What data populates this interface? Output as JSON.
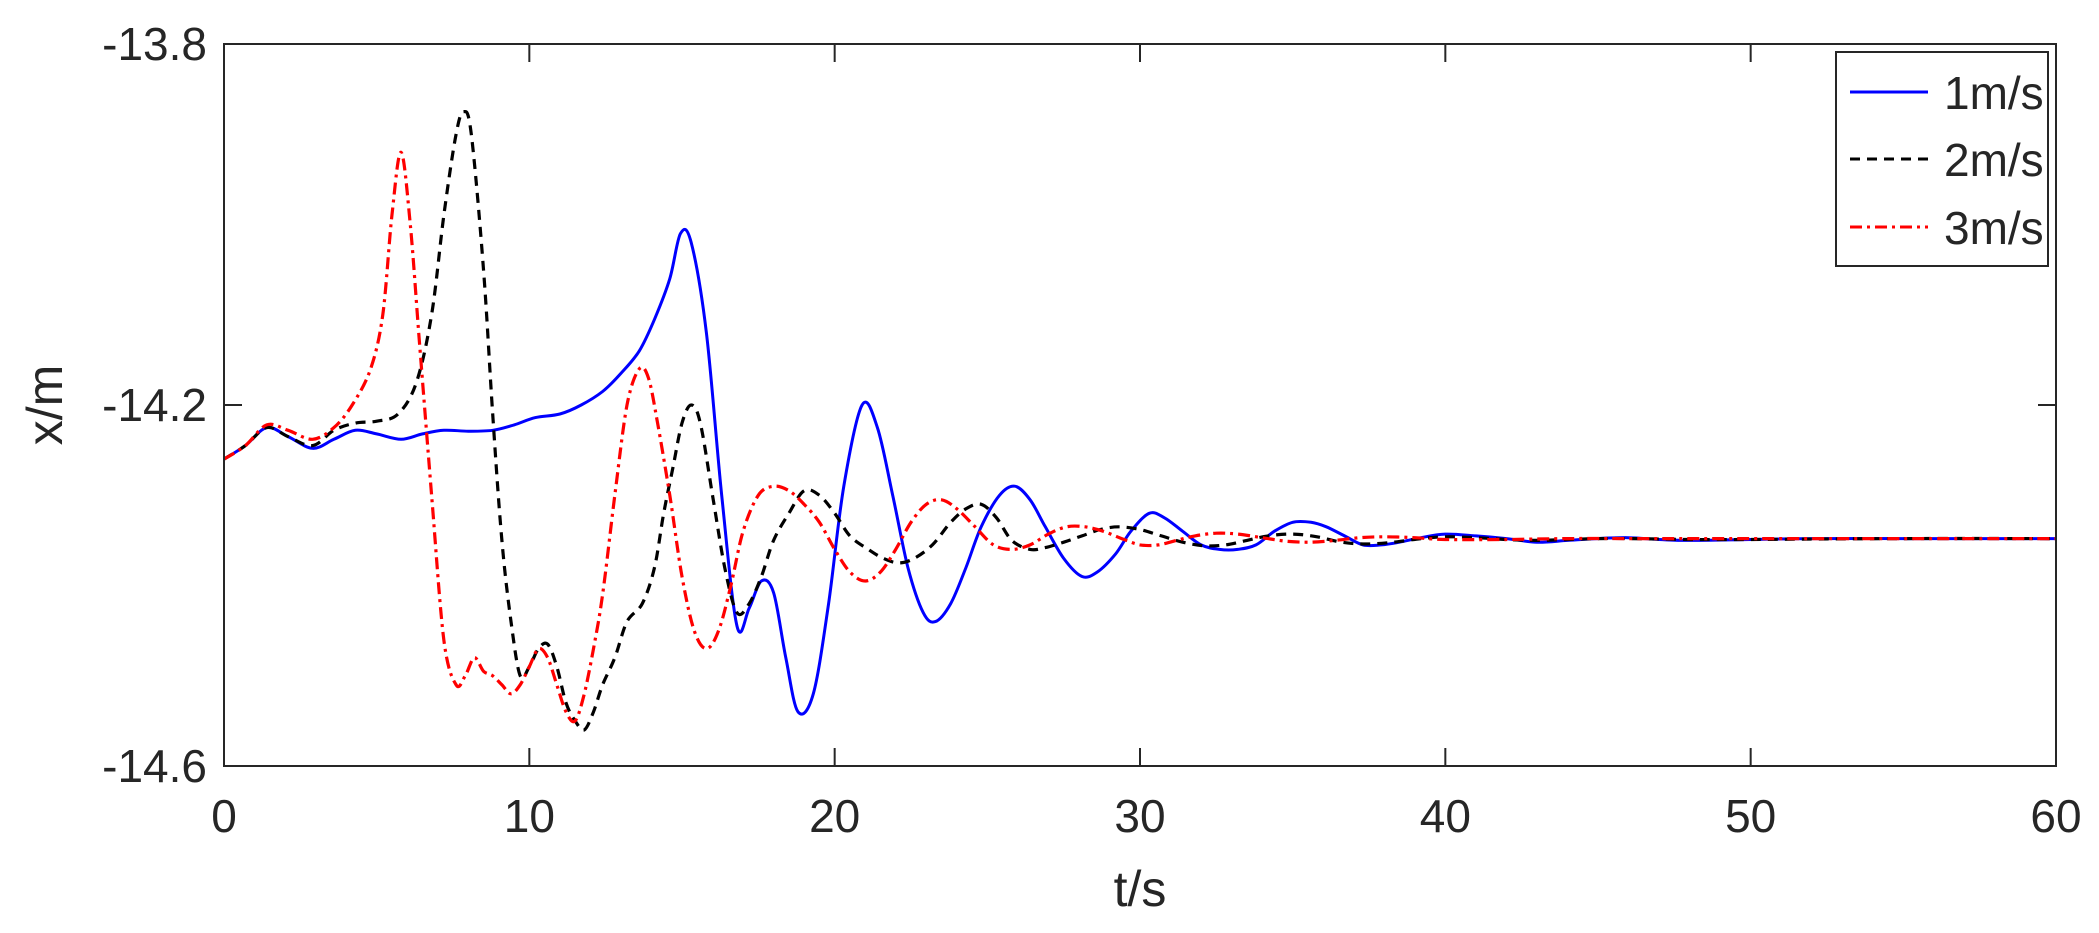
{
  "chart_data": {
    "type": "line",
    "xlabel": "t/s",
    "ylabel": "x/m",
    "xlim": [
      0,
      60
    ],
    "ylim": [
      -14.6,
      -13.8
    ],
    "xticks": [
      0,
      10,
      20,
      30,
      40,
      50,
      60
    ],
    "xtick_labels": [
      "0",
      "10",
      "20",
      "30",
      "40",
      "50",
      "60"
    ],
    "yticks": [
      -14.6,
      -14.2,
      -13.8
    ],
    "ytick_labels": [
      "-14.6",
      "-14.2",
      "-13.8"
    ],
    "grid": false,
    "legend": "top-right",
    "series": [
      {
        "name": "1m/s",
        "color": "#0000ff",
        "dash": "solid",
        "x": [
          0,
          0.7,
          1.4,
          2.1,
          2.9,
          3.6,
          4.3,
          5.0,
          5.8,
          6.5,
          7.2,
          8.0,
          8.8,
          9.5,
          10.2,
          11.0,
          11.7,
          12.4,
          13.0,
          13.6,
          14.1,
          14.6,
          14.95,
          15.3,
          15.8,
          16.3,
          16.8,
          17.2,
          17.6,
          18.0,
          18.4,
          18.8,
          19.3,
          19.8,
          20.3,
          20.9,
          21.4,
          21.9,
          22.4,
          22.9,
          23.3,
          23.8,
          24.3,
          24.8,
          25.4,
          25.9,
          26.4,
          26.9,
          27.5,
          28.1,
          28.6,
          29.2,
          29.7,
          30.3,
          30.8,
          31.4,
          32.0,
          32.6,
          33.2,
          33.8,
          34.4,
          35.0,
          35.6,
          36.1,
          36.7,
          37.3,
          37.9,
          38.5,
          39.2,
          40.0,
          41.0,
          42.0,
          43.0,
          44.0,
          45.0,
          46.0,
          47.0,
          48.0,
          50.0,
          52.0,
          55.0,
          58.0,
          60.0
        ],
        "y": [
          -14.26,
          -14.245,
          -14.225,
          -14.235,
          -14.248,
          -14.238,
          -14.228,
          -14.232,
          -14.238,
          -14.232,
          -14.228,
          -14.229,
          -14.228,
          -14.222,
          -14.214,
          -14.21,
          -14.2,
          -14.185,
          -14.165,
          -14.14,
          -14.105,
          -14.06,
          -14.01,
          -14.02,
          -14.12,
          -14.3,
          -14.445,
          -14.425,
          -14.395,
          -14.408,
          -14.48,
          -14.54,
          -14.52,
          -14.42,
          -14.29,
          -14.2,
          -14.225,
          -14.3,
          -14.38,
          -14.43,
          -14.44,
          -14.42,
          -14.38,
          -14.335,
          -14.3,
          -14.29,
          -14.305,
          -14.335,
          -14.37,
          -14.39,
          -14.385,
          -14.365,
          -14.34,
          -14.32,
          -14.325,
          -14.34,
          -14.355,
          -14.36,
          -14.36,
          -14.355,
          -14.34,
          -14.33,
          -14.33,
          -14.335,
          -14.345,
          -14.355,
          -14.355,
          -14.352,
          -14.347,
          -14.343,
          -14.345,
          -14.348,
          -14.352,
          -14.35,
          -14.348,
          -14.347,
          -14.349,
          -14.35,
          -14.349,
          -14.348,
          -14.348,
          -14.348,
          -14.348
        ]
      },
      {
        "name": "2m/s",
        "color": "#000000",
        "dash": "dashed",
        "x": [
          0,
          0.7,
          1.4,
          2.1,
          2.9,
          3.6,
          4.3,
          5.0,
          5.7,
          6.3,
          6.8,
          7.2,
          7.6,
          7.85,
          8.1,
          8.5,
          8.8,
          9.1,
          9.4,
          9.7,
          10.0,
          10.3,
          10.6,
          10.9,
          11.2,
          11.5,
          11.8,
          12.1,
          12.4,
          12.8,
          13.2,
          13.7,
          14.1,
          14.4,
          14.7,
          15.0,
          15.3,
          15.6,
          16.0,
          16.4,
          16.8,
          17.2,
          17.6,
          18.0,
          18.5,
          19.0,
          19.5,
          20.0,
          20.5,
          21.1,
          21.6,
          22.1,
          22.6,
          23.2,
          23.8,
          24.3,
          24.8,
          25.3,
          25.8,
          26.4,
          26.9,
          27.5,
          28.1,
          28.7,
          29.3,
          30.0,
          30.7,
          31.4,
          32.1,
          32.8,
          33.5,
          34.2,
          35.0,
          35.8,
          36.6,
          37.4,
          38.3,
          39.2,
          40.0,
          41.0,
          42.0,
          43.0,
          44.0,
          45.0,
          46.0,
          48.0,
          50.0,
          55.0,
          60.0
        ],
        "y": [
          -14.26,
          -14.245,
          -14.225,
          -14.235,
          -14.245,
          -14.228,
          -14.22,
          -14.218,
          -14.21,
          -14.175,
          -14.1,
          -13.99,
          -13.9,
          -13.875,
          -13.9,
          -14.05,
          -14.21,
          -14.35,
          -14.44,
          -14.5,
          -14.49,
          -14.47,
          -14.465,
          -14.49,
          -14.53,
          -14.55,
          -14.56,
          -14.54,
          -14.51,
          -14.48,
          -14.44,
          -14.42,
          -14.38,
          -14.32,
          -14.27,
          -14.22,
          -14.2,
          -14.22,
          -14.3,
          -14.38,
          -14.43,
          -14.42,
          -14.39,
          -14.35,
          -14.32,
          -14.295,
          -14.3,
          -14.32,
          -14.345,
          -14.36,
          -14.37,
          -14.375,
          -14.37,
          -14.355,
          -14.33,
          -14.315,
          -14.31,
          -14.325,
          -14.35,
          -14.36,
          -14.358,
          -14.352,
          -14.345,
          -14.338,
          -14.335,
          -14.338,
          -14.345,
          -14.352,
          -14.356,
          -14.355,
          -14.35,
          -14.345,
          -14.343,
          -14.346,
          -14.352,
          -14.354,
          -14.352,
          -14.348,
          -14.346,
          -14.347,
          -14.349,
          -14.35,
          -14.349,
          -14.348,
          -14.348,
          -14.349,
          -14.349,
          -14.348,
          -14.348
        ]
      },
      {
        "name": "3m/s",
        "color": "#ff0000",
        "dash": "dashdot",
        "x": [
          0,
          0.7,
          1.4,
          2.1,
          2.9,
          3.6,
          4.2,
          4.8,
          5.2,
          5.5,
          5.8,
          6.1,
          6.4,
          6.8,
          7.2,
          7.6,
          7.9,
          8.2,
          8.5,
          8.8,
          9.1,
          9.4,
          9.7,
          10.0,
          10.3,
          10.6,
          10.9,
          11.2,
          11.5,
          11.8,
          12.1,
          12.4,
          12.8,
          13.2,
          13.6,
          13.9,
          14.2,
          14.6,
          15.0,
          15.4,
          15.8,
          16.2,
          16.6,
          17.0,
          17.5,
          18.0,
          18.5,
          19.0,
          19.5,
          20.0,
          20.5,
          21.0,
          21.5,
          22.0,
          22.5,
          23.0,
          23.5,
          24.0,
          24.6,
          25.2,
          25.8,
          26.4,
          27.0,
          27.6,
          28.2,
          28.8,
          29.4,
          30.0,
          30.6,
          31.2,
          31.8,
          32.5,
          33.2,
          34.0,
          34.8,
          35.6,
          36.4,
          37.2,
          38.0,
          39.0,
          40.0,
          42.0,
          44.0,
          46.0,
          48.0,
          50.0,
          55.0,
          60.0
        ],
        "y": [
          -14.26,
          -14.245,
          -14.222,
          -14.228,
          -14.238,
          -14.225,
          -14.2,
          -14.16,
          -14.1,
          -13.99,
          -13.92,
          -14.0,
          -14.13,
          -14.3,
          -14.46,
          -14.51,
          -14.5,
          -14.48,
          -14.495,
          -14.5,
          -14.51,
          -14.52,
          -14.51,
          -14.49,
          -14.47,
          -14.48,
          -14.51,
          -14.54,
          -14.55,
          -14.52,
          -14.47,
          -14.41,
          -14.3,
          -14.2,
          -14.16,
          -14.17,
          -14.22,
          -14.3,
          -14.39,
          -14.45,
          -14.47,
          -14.45,
          -14.4,
          -14.34,
          -14.3,
          -14.29,
          -14.295,
          -14.31,
          -14.33,
          -14.36,
          -14.385,
          -14.395,
          -14.385,
          -14.36,
          -14.33,
          -14.31,
          -14.305,
          -14.315,
          -14.335,
          -14.355,
          -14.36,
          -14.355,
          -14.343,
          -14.335,
          -14.335,
          -14.34,
          -14.348,
          -14.355,
          -14.355,
          -14.35,
          -14.345,
          -14.342,
          -14.343,
          -14.347,
          -14.351,
          -14.352,
          -14.35,
          -14.347,
          -14.346,
          -14.347,
          -14.349,
          -14.349,
          -14.348,
          -14.348,
          -14.348,
          -14.348,
          -14.348,
          -14.348
        ]
      }
    ]
  }
}
